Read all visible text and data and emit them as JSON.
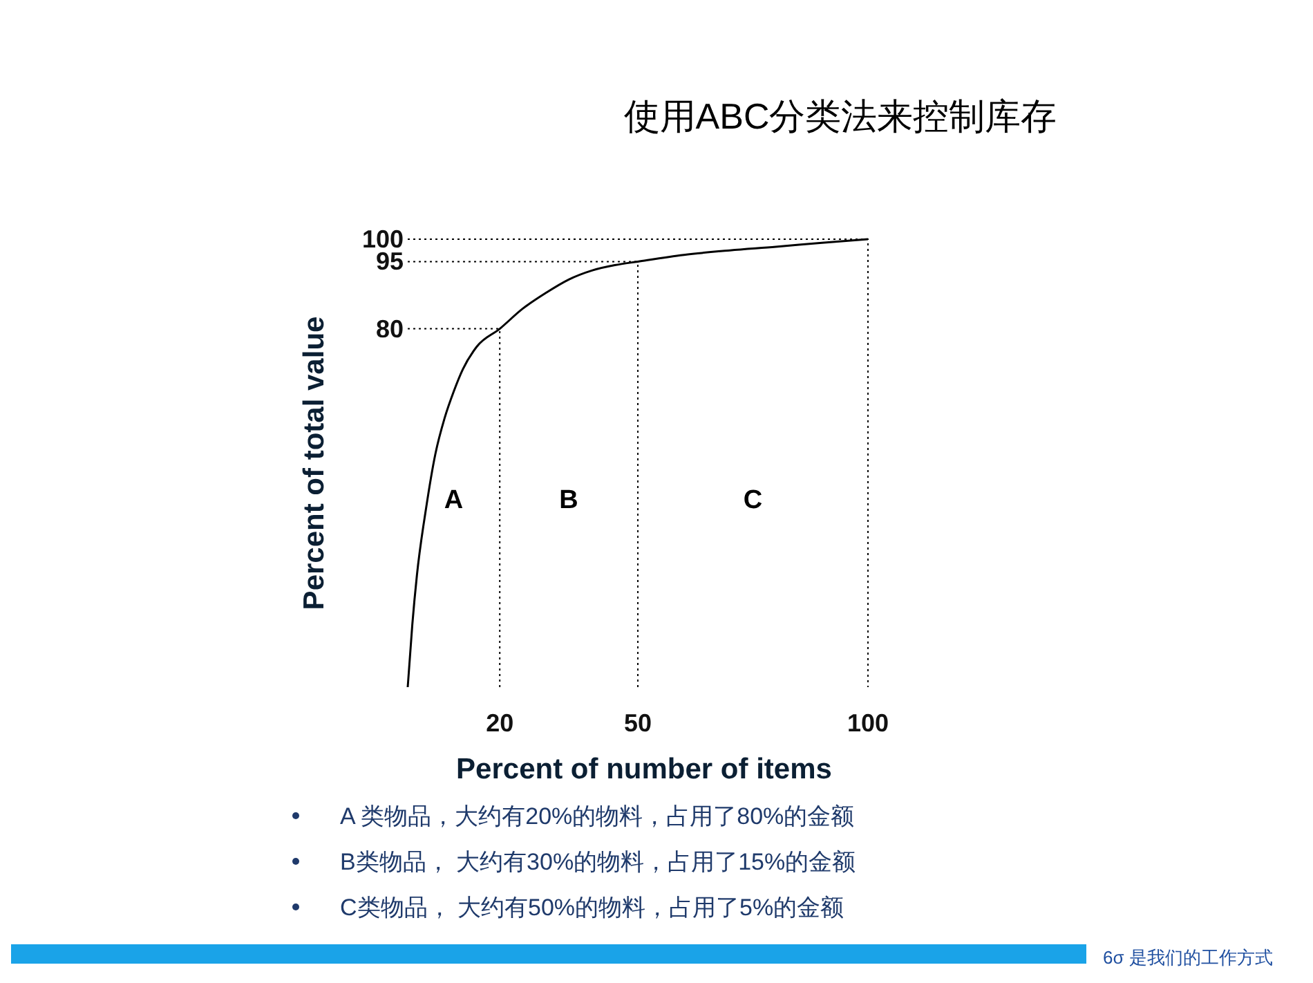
{
  "chart_data": {
    "type": "line",
    "title": "使用ABC分类法来控制库存",
    "xlabel": "Percent of number of items",
    "ylabel": "Percent of total value",
    "x": [
      0,
      1,
      2,
      4,
      6,
      8,
      10,
      12,
      15,
      20,
      25,
      30,
      35,
      40,
      45,
      50,
      60,
      70,
      80,
      90,
      100
    ],
    "series": [
      {
        "color": "#000000",
        "values": [
          0,
          14,
          25,
          40,
          52,
          60,
          66,
          71,
          76,
          80,
          84.5,
          88,
          91,
          93,
          94.2,
          95,
          96.5,
          97.5,
          98.3,
          99.2,
          100
        ]
      }
    ],
    "xlim": [
      0,
      100
    ],
    "ylim": [
      0,
      100
    ],
    "xticks": [
      20,
      50,
      100
    ],
    "yticks": [
      80,
      95,
      100
    ],
    "grid": false,
    "marker": "none",
    "line_style": "solid",
    "ref_lines": [
      {
        "axis": "x",
        "value": 20,
        "line_style": "dotted"
      },
      {
        "axis": "x",
        "value": 50,
        "line_style": "dotted"
      },
      {
        "axis": "y",
        "value": 80,
        "line_style": "dotted"
      },
      {
        "axis": "y",
        "value": 95,
        "line_style": "dotted"
      }
    ],
    "annotations": [
      "A",
      "B",
      "C",
      "A 类物品，大约有20%的物料，占用了80%的金额",
      "B类物品， 大约有30%的物料，占用了15%的金额",
      "C类物品， 大约有50%的物料，占用了5%的金额",
      "6σ 是我们的工作方式"
    ]
  }
}
